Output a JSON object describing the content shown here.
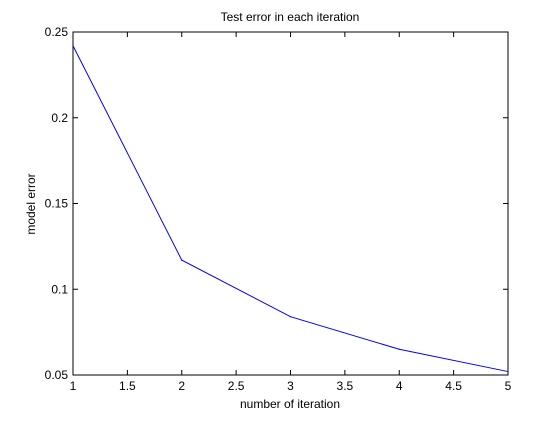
{
  "colors": {
    "background": "#ffffff",
    "axes": "#000000",
    "series_line": "#0000ff"
  },
  "chart_data": {
    "type": "line",
    "title": "Test error in each iteration",
    "xlabel": "number of iteration",
    "ylabel": "model error",
    "xlim": [
      1,
      5
    ],
    "ylim": [
      0.05,
      0.25
    ],
    "xticks": [
      1,
      1.5,
      2,
      2.5,
      3,
      3.5,
      4,
      4.5,
      5
    ],
    "xtick_labels": [
      "1",
      "1.5",
      "2",
      "2.5",
      "3",
      "3.5",
      "4",
      "4.5",
      "5"
    ],
    "yticks": [
      0.05,
      0.1,
      0.15,
      0.2,
      0.25
    ],
    "ytick_labels": [
      "0.05",
      "0.1",
      "0.15",
      "0.2",
      "0.25"
    ],
    "grid": false,
    "legend": "none",
    "series": [
      {
        "x": [
          1,
          2,
          3,
          4,
          5
        ],
        "values": [
          0.242,
          0.117,
          0.084,
          0.065,
          0.052
        ]
      }
    ]
  }
}
